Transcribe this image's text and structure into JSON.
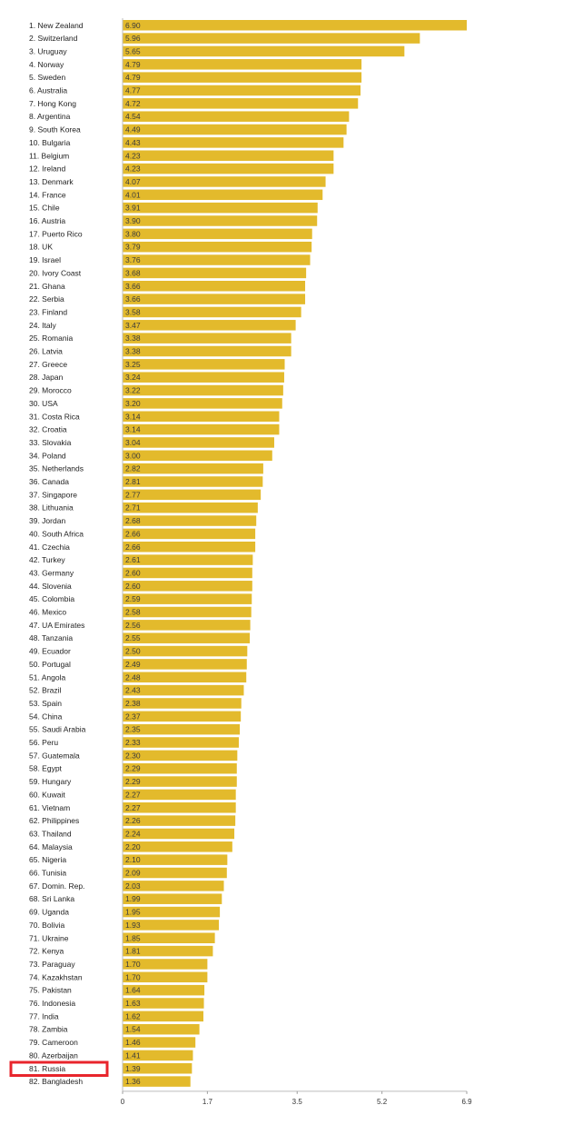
{
  "chart_data": {
    "type": "bar",
    "orientation": "horizontal",
    "title": "",
    "xlabel": "",
    "ylabel": "",
    "xlim": [
      0,
      6.9
    ],
    "x_ticks": [
      "0",
      "1.7",
      "3.5",
      "5.2",
      "6.9"
    ],
    "bar_color": "#e3ba2c",
    "highlight_color": "#e8252c",
    "highlight_index": 80,
    "grid": false,
    "categories": [
      "1. New Zealand",
      "2. Switzerland",
      "3. Uruguay",
      "4. Norway",
      "5. Sweden",
      "6. Australia",
      "7. Hong Kong",
      "8. Argentina",
      "9. South Korea",
      "10. Bulgaria",
      "11. Belgium",
      "12. Ireland",
      "13. Denmark",
      "14. France",
      "15. Chile",
      "16. Austria",
      "17. Puerto Rico",
      "18. UK",
      "19. Israel",
      "20. Ivory Coast",
      "21. Ghana",
      "22. Serbia",
      "23. Finland",
      "24. Italy",
      "25. Romania",
      "26. Latvia",
      "27. Greece",
      "28. Japan",
      "29. Morocco",
      "30. USA",
      "31. Costa Rica",
      "32. Croatia",
      "33. Slovakia",
      "34. Poland",
      "35. Netherlands",
      "36. Canada",
      "37. Singapore",
      "38. Lithuania",
      "39. Jordan",
      "40. South Africa",
      "41. Czechia",
      "42. Turkey",
      "43. Germany",
      "44. Slovenia",
      "45. Colombia",
      "46. Mexico",
      "47. UA Emirates",
      "48. Tanzania",
      "49. Ecuador",
      "50. Portugal",
      "51. Angola",
      "52. Brazil",
      "53. Spain",
      "54. China",
      "55. Saudi Arabia",
      "56. Peru",
      "57. Guatemala",
      "58. Egypt",
      "59. Hungary",
      "60. Kuwait",
      "61. Vietnam",
      "62. Philippines",
      "63. Thailand",
      "64. Malaysia",
      "65. Nigeria",
      "66. Tunisia",
      "67. Domin. Rep.",
      "68. Sri Lanka",
      "69. Uganda",
      "70. Bolivia",
      "71. Ukraine",
      "72. Kenya",
      "73. Paraguay",
      "74. Kazakhstan",
      "75. Pakistan",
      "76. Indonesia",
      "77. India",
      "78. Zambia",
      "79. Cameroon",
      "80. Azerbaijan",
      "81. Russia",
      "82. Bangladesh"
    ],
    "values": [
      6.9,
      5.96,
      5.65,
      4.79,
      4.79,
      4.77,
      4.72,
      4.54,
      4.49,
      4.43,
      4.23,
      4.23,
      4.07,
      4.01,
      3.91,
      3.9,
      3.8,
      3.79,
      3.76,
      3.68,
      3.66,
      3.66,
      3.58,
      3.47,
      3.38,
      3.38,
      3.25,
      3.24,
      3.22,
      3.2,
      3.14,
      3.14,
      3.04,
      3.0,
      2.82,
      2.81,
      2.77,
      2.71,
      2.68,
      2.66,
      2.66,
      2.61,
      2.6,
      2.6,
      2.59,
      2.58,
      2.56,
      2.55,
      2.5,
      2.49,
      2.48,
      2.43,
      2.38,
      2.37,
      2.35,
      2.33,
      2.3,
      2.29,
      2.29,
      2.27,
      2.27,
      2.26,
      2.24,
      2.2,
      2.1,
      2.09,
      2.03,
      1.99,
      1.95,
      1.93,
      1.85,
      1.81,
      1.7,
      1.7,
      1.64,
      1.63,
      1.62,
      1.54,
      1.46,
      1.41,
      1.39,
      1.36
    ],
    "value_labels": [
      "6.90",
      "5.96",
      "5.65",
      "4.79",
      "4.79",
      "4.77",
      "4.72",
      "4.54",
      "4.49",
      "4.43",
      "4.23",
      "4.23",
      "4.07",
      "4.01",
      "3.91",
      "3.90",
      "3.80",
      "3.79",
      "3.76",
      "3.68",
      "3.66",
      "3.66",
      "3.58",
      "3.47",
      "3.38",
      "3.38",
      "3.25",
      "3.24",
      "3.22",
      "3.20",
      "3.14",
      "3.14",
      "3.04",
      "3.00",
      "2.82",
      "2.81",
      "2.77",
      "2.71",
      "2.68",
      "2.66",
      "2.66",
      "2.61",
      "2.60",
      "2.60",
      "2.59",
      "2.58",
      "2.56",
      "2.55",
      "2.50",
      "2.49",
      "2.48",
      "2.43",
      "2.38",
      "2.37",
      "2.35",
      "2.33",
      "2.30",
      "2.29",
      "2.29",
      "2.27",
      "2.27",
      "2.26",
      "2.24",
      "2.20",
      "2.10",
      "2.09",
      "2.03",
      "1.99",
      "1.95",
      "1.93",
      "1.85",
      "1.81",
      "1.70",
      "1.70",
      "1.64",
      "1.63",
      "1.62",
      "1.54",
      "1.46",
      "1.41",
      "1.39",
      "1.36"
    ]
  }
}
